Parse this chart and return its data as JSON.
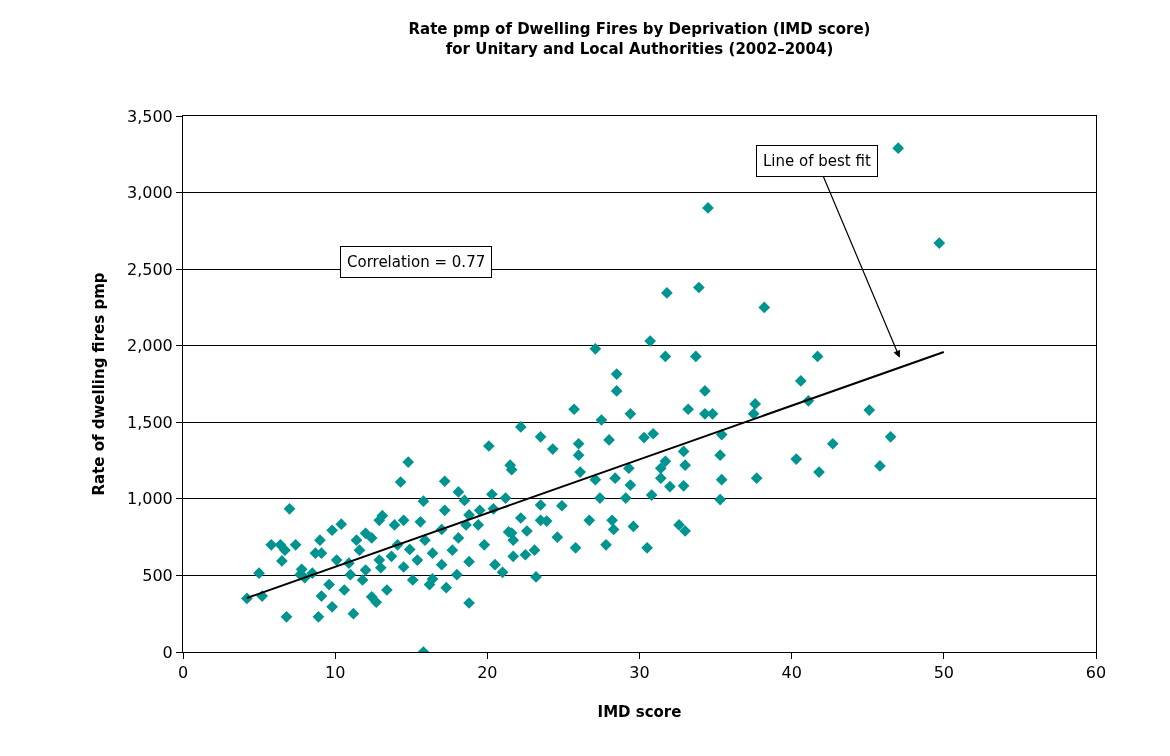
{
  "chart_data": {
    "type": "scatter",
    "title": "Rate pmp of Dwelling Fires by Deprivation (IMD score)\nfor Unitary and Local Authorities (2002–2004)",
    "xlabel": "IMD score",
    "ylabel": "Rate of dwelling fires pmp",
    "xlim": [
      0,
      60
    ],
    "xticks": [
      0,
      10,
      20,
      30,
      40,
      50,
      60
    ],
    "ylim": [
      0,
      3500
    ],
    "yticks": [
      0,
      500,
      {
        "value": 1000,
        "label": "1,000"
      },
      {
        "value": 1500,
        "label": "1,500"
      },
      {
        "value": 2000,
        "label": "2,000"
      },
      {
        "value": 2500,
        "label": "2,500"
      },
      {
        "value": 3000,
        "label": "3,000"
      },
      {
        "value": 3500,
        "label": "3,500"
      }
    ],
    "grid": "y",
    "legend": false,
    "marker": "diamond",
    "annotations": [
      "Correlation = 0.77",
      "Line of best fit"
    ],
    "series": [
      {
        "color": "#009490",
        "x": [
          47.0,
          49.7,
          34.5,
          31.8,
          33.9,
          38.2,
          30.7,
          27.1,
          41.7,
          40.6,
          28.5,
          28.5,
          31.7,
          33.7,
          34.3,
          37.6,
          37.5,
          41.1,
          45.1,
          25.7,
          29.4,
          33.2,
          34.3,
          34.8,
          22.2,
          35.4,
          42.7,
          46.5,
          27.5,
          30.3,
          30.9,
          28.0,
          26.0,
          23.5,
          20.1,
          45.8,
          40.3,
          41.8,
          35.3,
          31.7,
          32.9,
          33.0,
          35.4,
          37.7,
          35.3,
          26.1,
          30.8,
          31.4,
          26.0,
          29.3,
          27.1,
          28.4,
          29.4,
          31.4,
          32.0,
          32.9,
          33.0,
          32.6,
          30.5,
          27.8,
          25.8,
          29.6,
          28.3,
          28.2,
          26.7,
          29.1,
          27.4,
          24.9,
          23.5,
          23.1,
          23.2,
          22.2,
          21.6,
          21.7,
          21.4,
          21.2,
          21.6,
          21.5,
          24.3,
          23.9,
          19.4,
          18.8,
          18.8,
          20.4,
          20.3,
          18.1,
          17.2,
          14.8,
          14.3,
          15.8,
          15.8,
          16.4,
          16.4,
          14.9,
          13.9,
          12.9,
          13.1,
          13.0,
          12.4,
          10.9,
          10.4,
          12.0,
          11.2,
          9.8,
          9.1,
          8.9,
          6.8,
          5.2,
          4.2,
          5.0,
          6.7,
          7.0,
          6.5,
          7.8,
          8.7,
          9.0,
          7.4,
          8.0,
          10.1,
          9.6,
          11.0,
          10.6,
          11.8,
          12.7,
          13.4,
          15.1,
          14.1,
          11.4,
          12.4,
          13.7,
          15.4,
          15.9,
          17.0,
          17.7,
          18.1,
          18.6,
          19.8,
          17.0,
          16.2,
          20.5,
          21.0,
          21.7,
          22.5,
          22.6,
          24.6,
          23.5,
          9.1,
          5.8,
          6.4,
          7.7,
          8.5,
          9.8,
          11.6,
          12.0,
          12.9,
          14.5,
          15.6,
          17.2,
          18.8,
          18.5,
          19.5,
          14.5,
          18.0,
          17.3
        ],
        "values": [
          3290,
          2670,
          2900,
          2345,
          2380,
          2250,
          2030,
          1980,
          1930,
          1770,
          1815,
          1705,
          1930,
          1930,
          1705,
          1620,
          1555,
          1640,
          1580,
          1585,
          1555,
          1585,
          1555,
          1555,
          1470,
          1420,
          1360,
          1405,
          1515,
          1400,
          1425,
          1385,
          1360,
          1405,
          1345,
          1215,
          1260,
          1175,
          1285,
          1245,
          1310,
          1220,
          1125,
          1135,
          995,
          1175,
          1025,
          1200,
          1285,
          1200,
          1125,
          1135,
          1090,
          1135,
          1080,
          1085,
          790,
          830,
          680,
          700,
          680,
          820,
          800,
          860,
          860,
          1005,
          1005,
          955,
          960,
          665,
          490,
          875,
          777,
          730,
          784,
          1005,
          1190,
          1220,
          1325,
          855,
          830,
          590,
          320,
          935,
          1030,
          1045,
          1115,
          1240,
          1110,
          985,
          0,
          645,
          477,
          670,
          830,
          860,
          890,
          550,
          360,
          580,
          835,
          535,
          250,
          295,
          365,
          230,
          230,
          365,
          350,
          515,
          665,
          935,
          595,
          540,
          645,
          730,
          700,
          485,
          600,
          440,
          505,
          405,
          470,
          325,
          405,
          470,
          700,
          730,
          745,
          625,
          600,
          730,
          800,
          665,
          745,
          830,
          700,
          570,
          440,
          570,
          520,
          625,
          635,
          790,
          750,
          860,
          645,
          700,
          700,
          505,
          515,
          795,
          665,
          775,
          600,
          860,
          850,
          925,
          895,
          990,
          925,
          555,
          505,
          420
        ]
      },
      {
        "type": "line",
        "color": "#000000",
        "marker": "none",
        "x": [
          4.2,
          50
        ],
        "values": [
          353,
          1959
        ]
      }
    ]
  }
}
